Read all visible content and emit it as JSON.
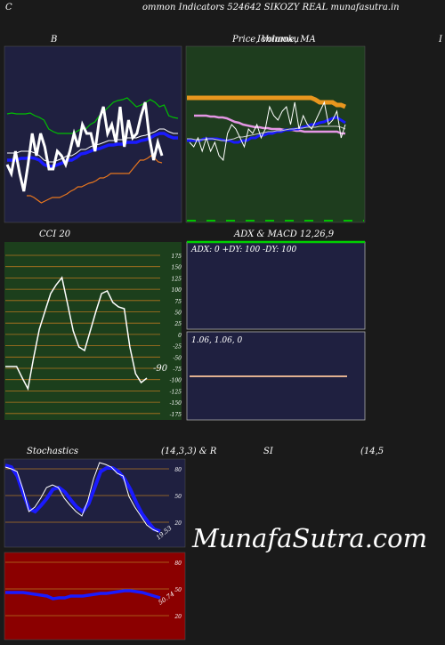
{
  "header": {
    "left": "C",
    "title": "ommon  Indicators 524642  SIKOZY REAL munafasutra.in"
  },
  "panels": {
    "bb": {
      "title": "B"
    },
    "price": {
      "title": "Price,  Volume,  MA",
      "title_overlap": "Ichimoku",
      "edge_letter": "I"
    },
    "cci": {
      "title": "CCI 20",
      "value_label": "-90",
      "levels": [
        "175",
        "150",
        "125",
        "100",
        "75",
        "50",
        "25",
        "0",
        "-25",
        "-50",
        "-75",
        "-100",
        "-125",
        "-150",
        "-175"
      ]
    },
    "adx": {
      "title": "ADX  & MACD 12,26,9",
      "readout": "ADX: 0   +DY: 100   -DY: 100"
    },
    "macd": {
      "readout": "1.06,  1.06,  0"
    },
    "stoch": {
      "title_left": "Stochastics",
      "title_mid": "(14,3,3) & R",
      "title_si": "SI",
      "title_right": "(14,5",
      "levels": [
        "80",
        "50",
        "20"
      ],
      "value_label": "19.53"
    },
    "rsi": {
      "levels": [
        "80",
        "50",
        "20"
      ],
      "value_label": "50.74"
    }
  },
  "watermark": "MunafaSutra.com",
  "colors": {
    "navy": "#1f2040",
    "green_panel": "#1e3d1e",
    "cci_bg": "#1c3f1c",
    "grid_orange": "#b5761f",
    "rsi_bg": "#8b0000",
    "blue": "#1a1aff",
    "orange": "#e8961e",
    "pink": "#e496e4",
    "lime": "#00d000"
  },
  "series": {
    "bb_price": [
      185,
      195,
      170,
      195,
      215,
      185,
      150,
      175,
      150,
      165,
      190,
      190,
      170,
      175,
      185,
      170,
      150,
      165,
      140,
      150,
      150,
      170,
      135,
      120,
      150,
      140,
      160,
      120,
      165,
      135,
      155,
      150,
      130,
      115,
      155,
      180,
      160,
      175
    ],
    "bb_upper": [
      128,
      127,
      128,
      128,
      128,
      127,
      130,
      132,
      135,
      145,
      148,
      150,
      150,
      150,
      150,
      148,
      145,
      145,
      140,
      137,
      130,
      125,
      120,
      115,
      113,
      112,
      110,
      115,
      120,
      118,
      115,
      112,
      115,
      120,
      118,
      130,
      132,
      133
    ],
    "bb_mid1": [
      172,
      172,
      172,
      170,
      170,
      170,
      172,
      175,
      180,
      182,
      182,
      180,
      178,
      175,
      175,
      172,
      168,
      168,
      165,
      163,
      162,
      160,
      158,
      158,
      157,
      157,
      155,
      155,
      155,
      153,
      152,
      150,
      148,
      145,
      145,
      148,
      150,
      150
    ],
    "bb_mid2": [
      180,
      180,
      180,
      178,
      178,
      177,
      178,
      180,
      185,
      187,
      187,
      185,
      183,
      180,
      180,
      177,
      173,
      172,
      170,
      168,
      167,
      165,
      163,
      163,
      162,
      162,
      160,
      160,
      160,
      158,
      157,
      155,
      152,
      150,
      150,
      153,
      155,
      155
    ],
    "bb_lower": [
      220,
      220,
      222,
      225,
      228,
      226,
      224,
      222,
      222,
      222,
      220,
      218,
      215,
      213,
      210,
      210,
      208,
      206,
      205,
      203,
      200,
      200,
      198,
      195,
      195,
      195,
      195,
      195,
      195,
      190,
      185,
      180,
      180,
      178,
      175,
      178,
      182,
      183
    ],
    "ichi_orange": [
      110,
      110,
      110,
      110,
      110,
      110,
      110,
      110,
      110,
      110,
      110,
      110,
      110,
      110,
      110,
      110,
      110,
      110,
      110,
      110,
      110,
      110,
      110,
      110,
      110,
      110,
      110,
      110,
      110,
      110,
      112,
      115,
      115,
      115,
      115,
      118,
      118,
      120
    ],
    "ichi_pink": [
      130,
      130,
      130,
      130,
      131,
      131,
      132,
      132,
      133,
      135,
      137,
      138,
      140,
      141,
      142,
      143,
      143,
      144,
      144,
      145,
      145,
      145,
      146,
      146,
      146,
      147,
      147,
      148,
      148,
      148,
      148,
      148,
      148,
      148,
      148,
      148,
      150,
      150
    ],
    "ichi_white": [
      160,
      165,
      155,
      170,
      155,
      170,
      160,
      175,
      180,
      150,
      140,
      145,
      155,
      165,
      145,
      150,
      140,
      155,
      145,
      120,
      130,
      135,
      125,
      120,
      140,
      115,
      145,
      130,
      140,
      145,
      135,
      125,
      115,
      140,
      135,
      125,
      155,
      140
    ],
    "ichi_blue": [
      158,
      158,
      158,
      158,
      156,
      156,
      156,
      156,
      157,
      158,
      158,
      160,
      160,
      158,
      158,
      155,
      155,
      152,
      152,
      150,
      150,
      148,
      148,
      146,
      146,
      145,
      145,
      143,
      142,
      140,
      140,
      138,
      137,
      135,
      133,
      132,
      135,
      138
    ],
    "ichi_gray": [
      156,
      156,
      157,
      157,
      157,
      156,
      156,
      157,
      158,
      158,
      157,
      156,
      154,
      154,
      153,
      152,
      151,
      150,
      149,
      148,
      148,
      147,
      147,
      146,
      145,
      145,
      144,
      144,
      143,
      143,
      143,
      142,
      142,
      142,
      142,
      142,
      143,
      145
    ],
    "cci": [
      412,
      412,
      412,
      425,
      437,
      402,
      370,
      350,
      330,
      320,
      312,
      342,
      372,
      390,
      394,
      372,
      350,
      330,
      327,
      340,
      345,
      347,
      390,
      420,
      430,
      425
    ],
    "stoch_k": [
      525,
      527,
      530,
      550,
      575,
      570,
      560,
      548,
      545,
      548,
      560,
      568,
      575,
      580,
      563,
      538,
      520,
      522,
      525,
      532,
      535,
      558,
      570,
      580,
      590,
      595,
      598
    ],
    "stoch_d": [
      523,
      525,
      535,
      555,
      572,
      575,
      568,
      560,
      550,
      548,
      553,
      562,
      570,
      575,
      566,
      548,
      530,
      526,
      526,
      530,
      538,
      550,
      565,
      578,
      587,
      595,
      597
    ],
    "rsi": [
      666,
      666,
      666,
      666,
      667,
      668,
      669,
      670,
      673,
      672,
      672,
      670,
      670,
      670,
      669,
      668,
      667,
      667,
      666,
      665,
      664,
      664,
      665,
      666,
      668,
      670,
      672
    ]
  }
}
